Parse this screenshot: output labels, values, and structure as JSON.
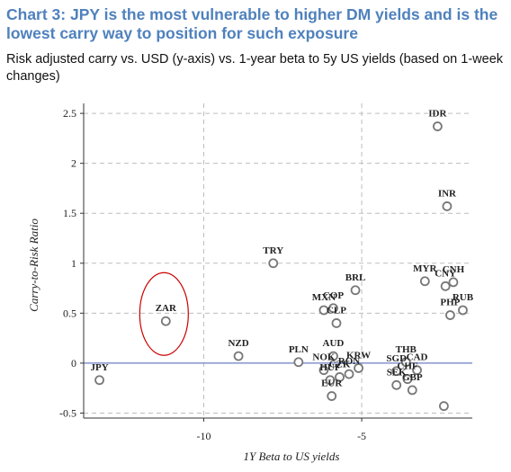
{
  "header": {
    "title": "Chart 3: JPY is the most vulnerable to higher DM yields and is the lowest carry way to position for such exposure",
    "subtitle": "Risk adjusted carry vs. USD (y-axis) vs. 1-year beta to 5y US yields (based on 1-week changes)"
  },
  "chart_data": {
    "type": "scatter",
    "xlabel": "1Y Beta to US yields",
    "ylabel": "Carry-to-Risk Ratio",
    "xlim": [
      -13.8,
      -1.5
    ],
    "ylim": [
      -0.55,
      2.6
    ],
    "x_ticks": [
      -10,
      -5
    ],
    "x_tick_labels": [
      "-10",
      "-5"
    ],
    "y_ticks": [
      -0.5,
      0,
      0.5,
      1,
      1.5,
      2,
      2.5
    ],
    "y_tick_labels": [
      "-0.5",
      "0",
      "0.5",
      "1",
      "1.5",
      "2",
      "2.5"
    ],
    "grid": true,
    "highlighted": "ZAR",
    "colors": {
      "marker": "#777777",
      "zero_line": "#6b7fc4",
      "grid": "#bdbdbd",
      "highlight": "#cc0000",
      "title": "#4f81bd"
    },
    "points": [
      {
        "label": "IDR",
        "x": -2.6,
        "y": 2.37
      },
      {
        "label": "INR",
        "x": -2.3,
        "y": 1.57
      },
      {
        "label": "MYR",
        "x": -3.0,
        "y": 0.82
      },
      {
        "label": "CNY",
        "x": -2.35,
        "y": 0.77
      },
      {
        "label": "CNH",
        "x": -2.1,
        "y": 0.81
      },
      {
        "label": "RUB",
        "x": -1.8,
        "y": 0.53
      },
      {
        "label": "PHP",
        "x": -2.2,
        "y": 0.48
      },
      {
        "label": "TRY",
        "x": -7.8,
        "y": 1.0
      },
      {
        "label": "BRL",
        "x": -5.2,
        "y": 0.73
      },
      {
        "label": "MXN",
        "x": -6.2,
        "y": 0.53
      },
      {
        "label": "COP",
        "x": -5.9,
        "y": 0.55
      },
      {
        "label": "CLP",
        "x": -5.8,
        "y": 0.4
      },
      {
        "label": "AUD",
        "x": -5.9,
        "y": 0.07
      },
      {
        "label": "ZAR",
        "x": -11.2,
        "y": 0.42
      },
      {
        "label": "NZD",
        "x": -8.9,
        "y": 0.07
      },
      {
        "label": "PLN",
        "x": -7.0,
        "y": 0.01
      },
      {
        "label": "THB",
        "x": -3.6,
        "y": 0.01
      },
      {
        "label": "NOK",
        "x": -6.2,
        "y": -0.07
      },
      {
        "label": "HUF",
        "x": -6.0,
        "y": -0.17
      },
      {
        "label": "CZK",
        "x": -5.7,
        "y": -0.14
      },
      {
        "label": "RON",
        "x": -5.4,
        "y": -0.11
      },
      {
        "label": "KRW",
        "x": -5.1,
        "y": -0.05
      },
      {
        "label": "EUR",
        "x": -5.95,
        "y": -0.33
      },
      {
        "label": "SGD",
        "x": -3.9,
        "y": -0.08
      },
      {
        "label": "CAD",
        "x": -3.25,
        "y": -0.07
      },
      {
        "label": "CHF",
        "x": -3.55,
        "y": -0.16
      },
      {
        "label": "SEK",
        "x": -3.9,
        "y": -0.22
      },
      {
        "label": "GBP",
        "x": -3.4,
        "y": -0.27
      },
      {
        "label": "JPY",
        "x": -13.3,
        "y": -0.17
      },
      {
        "label": "",
        "x": -2.4,
        "y": -0.43
      }
    ]
  }
}
